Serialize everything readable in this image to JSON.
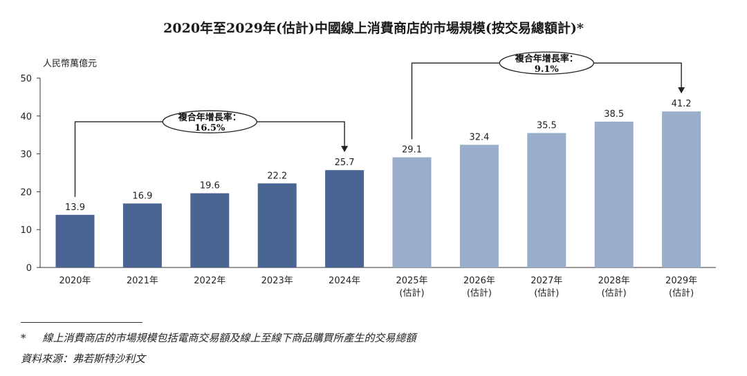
{
  "chart_data": {
    "type": "bar",
    "title": "2020年至2029年(估計)中國線上消費商店的市場規模(按交易總額計)*",
    "ylabel": "人民幣萬億元",
    "ylim": [
      0,
      50
    ],
    "yticks": [
      0,
      10,
      20,
      30,
      40,
      50
    ],
    "categories": [
      {
        "year": "2020年",
        "note": ""
      },
      {
        "year": "2021年",
        "note": ""
      },
      {
        "year": "2022年",
        "note": ""
      },
      {
        "year": "2023年",
        "note": ""
      },
      {
        "year": "2024年",
        "note": ""
      },
      {
        "year": "2025年",
        "note": "(估計)"
      },
      {
        "year": "2026年",
        "note": "(估計)"
      },
      {
        "year": "2027年",
        "note": "(估計)"
      },
      {
        "year": "2028年",
        "note": "(估計)"
      },
      {
        "year": "2029年",
        "note": "(估計)"
      }
    ],
    "values": [
      13.9,
      16.9,
      19.6,
      22.2,
      25.7,
      29.1,
      32.4,
      35.5,
      38.5,
      41.2
    ],
    "value_labels": [
      "13.9",
      "16.9",
      "19.6",
      "22.2",
      "25.7",
      "29.1",
      "32.4",
      "35.5",
      "38.5",
      "41.2"
    ],
    "series_colors": {
      "actual": "#4a6593",
      "estimate": "#9aadcb"
    },
    "annotations": [
      {
        "label": "複合年增長率：",
        "value": "16.5%",
        "from_index": 0,
        "to_index": 4
      },
      {
        "label": "複合年增長率：",
        "value": "9.1%",
        "from_index": 5,
        "to_index": 9
      }
    ]
  },
  "footnote": "*     線上消費商店的市場規模包括電商交易額及線上至線下商品購買所產生的交易總額",
  "source": "資料來源：弗若斯特沙利文"
}
